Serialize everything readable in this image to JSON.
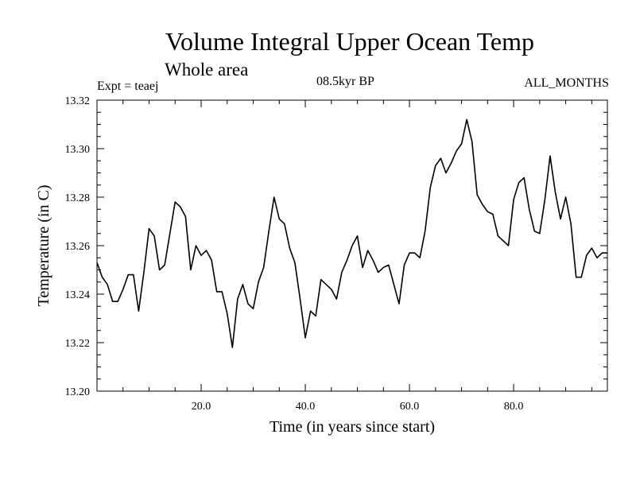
{
  "header": {
    "title": "Volume Integral Upper Ocean Temp",
    "subtitle": "Whole area",
    "expt": "Expt = teaej",
    "period": "08.5kyr BP",
    "months": "ALL_MONTHS"
  },
  "chart_data": {
    "type": "line",
    "title": "Volume Integral Upper Ocean Temp",
    "subtitle": "Whole area",
    "xlabel": "Time (in years since start)",
    "ylabel": "Temperature (in C)",
    "xlim": [
      0,
      98
    ],
    "ylim": [
      13.2,
      13.32
    ],
    "x_ticks": [
      20,
      40,
      60,
      80
    ],
    "x_tick_labels": [
      "20.0",
      "40.0",
      "60.0",
      "80.0"
    ],
    "y_ticks": [
      13.2,
      13.22,
      13.24,
      13.26,
      13.28,
      13.3,
      13.32
    ],
    "y_tick_labels": [
      "13.20",
      "13.22",
      "13.24",
      "13.26",
      "13.28",
      "13.30",
      "13.32"
    ],
    "grid": false,
    "line_color": "#000000",
    "series": [
      {
        "name": "Temperature",
        "x": [
          0,
          1,
          2,
          3,
          4,
          5,
          6,
          7,
          8,
          9,
          10,
          11,
          12,
          13,
          14,
          15,
          16,
          17,
          18,
          19,
          20,
          21,
          22,
          23,
          24,
          25,
          26,
          27,
          28,
          29,
          30,
          31,
          32,
          33,
          34,
          35,
          36,
          37,
          38,
          39,
          40,
          41,
          42,
          43,
          44,
          45,
          46,
          47,
          48,
          49,
          50,
          51,
          52,
          53,
          54,
          55,
          56,
          57,
          58,
          59,
          60,
          61,
          62,
          63,
          64,
          65,
          66,
          67,
          68,
          69,
          70,
          71,
          72,
          73,
          74,
          75,
          76,
          77,
          78,
          79,
          80,
          81,
          82,
          83,
          84,
          85,
          86,
          87,
          88,
          89,
          90,
          91,
          92,
          93,
          94,
          95,
          96,
          97,
          98
        ],
        "values": [
          13.253,
          13.247,
          13.244,
          13.237,
          13.237,
          13.242,
          13.248,
          13.248,
          13.233,
          13.249,
          13.267,
          13.264,
          13.25,
          13.252,
          13.265,
          13.278,
          13.276,
          13.272,
          13.25,
          13.26,
          13.256,
          13.258,
          13.254,
          13.241,
          13.241,
          13.232,
          13.218,
          13.238,
          13.244,
          13.236,
          13.234,
          13.245,
          13.251,
          13.266,
          13.28,
          13.271,
          13.269,
          13.259,
          13.253,
          13.238,
          13.222,
          13.233,
          13.231,
          13.246,
          13.244,
          13.242,
          13.238,
          13.249,
          13.254,
          13.26,
          13.264,
          13.251,
          13.258,
          13.254,
          13.249,
          13.251,
          13.252,
          13.244,
          13.236,
          13.252,
          13.257,
          13.257,
          13.255,
          13.266,
          13.284,
          13.293,
          13.296,
          13.29,
          13.294,
          13.299,
          13.302,
          13.312,
          13.303,
          13.281,
          13.277,
          13.274,
          13.273,
          13.264,
          13.262,
          13.26,
          13.279,
          13.286,
          13.288,
          13.275,
          13.266,
          13.265,
          13.279,
          13.297,
          13.282,
          13.271,
          13.28,
          13.269,
          13.247,
          13.247,
          13.256,
          13.259,
          13.255,
          13.257,
          13.257
        ]
      }
    ]
  }
}
